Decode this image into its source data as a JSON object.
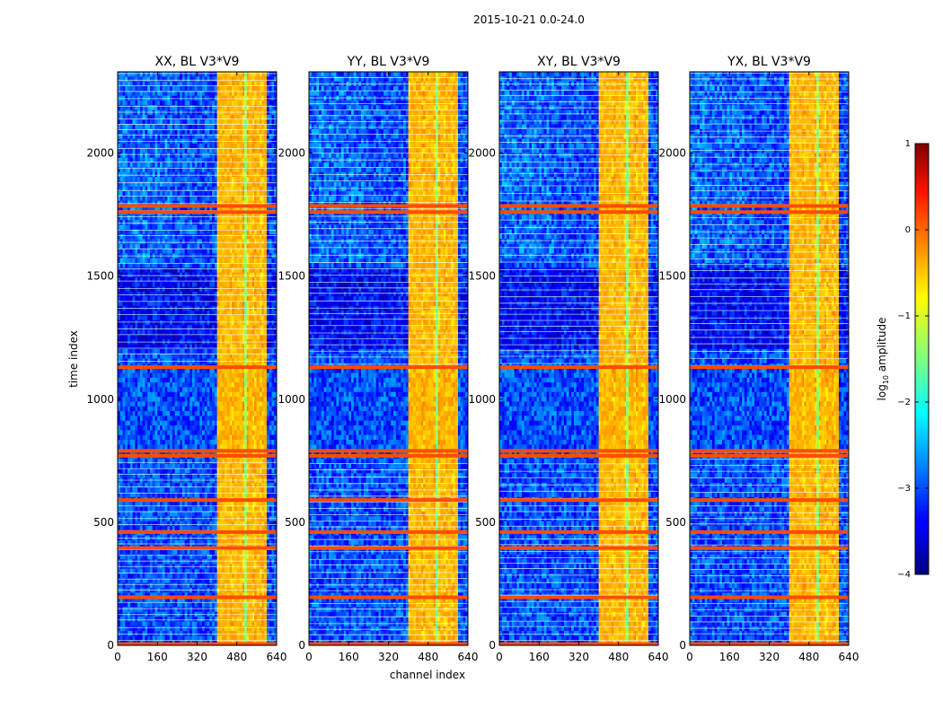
{
  "chart_data": {
    "type": "heatmap",
    "suptitle": "2015-10-21 0.0-24.0",
    "xlabel": "channel index",
    "ylabel": "time index",
    "xlim": [
      0,
      640
    ],
    "ylim": [
      0,
      2330
    ],
    "xticks": [
      0,
      160,
      320,
      480,
      640
    ],
    "yticks": [
      0,
      500,
      1000,
      1500,
      2000
    ],
    "panels": [
      {
        "title": "XX, BL V3*V9"
      },
      {
        "title": "YY, BL V3*V9"
      },
      {
        "title": "XY, BL V3*V9"
      },
      {
        "title": "YX, BL V3*V9"
      }
    ],
    "colorbar": {
      "label": "log10 amplitude",
      "label_main": "log",
      "label_sub": "10",
      "label_rest": " amplitude",
      "vmin": -4,
      "vmax": 1,
      "ticks": [
        1,
        0,
        -1,
        -2,
        -3,
        -4
      ],
      "tick_labels": [
        "1",
        "0",
        "−1",
        "−2",
        "−3",
        "−4"
      ],
      "colormap": "jet"
    },
    "features": {
      "rfi_channel_band": [
        405,
        600
      ],
      "bright_channel_bands": [
        [
          405,
          455
        ],
        [
          465,
          505
        ],
        [
          525,
          545
        ],
        [
          555,
          575
        ],
        [
          585,
          600
        ]
      ],
      "flagged_time_rows": [
        5,
        195,
        395,
        460,
        590,
        770,
        790,
        1130,
        1760,
        1785
      ],
      "quiet_time_range": [
        800,
        1130
      ],
      "background_log_amplitude": -3.0,
      "rfi_log_amplitude": -0.5,
      "flag_log_amplitude": 0.0
    }
  }
}
